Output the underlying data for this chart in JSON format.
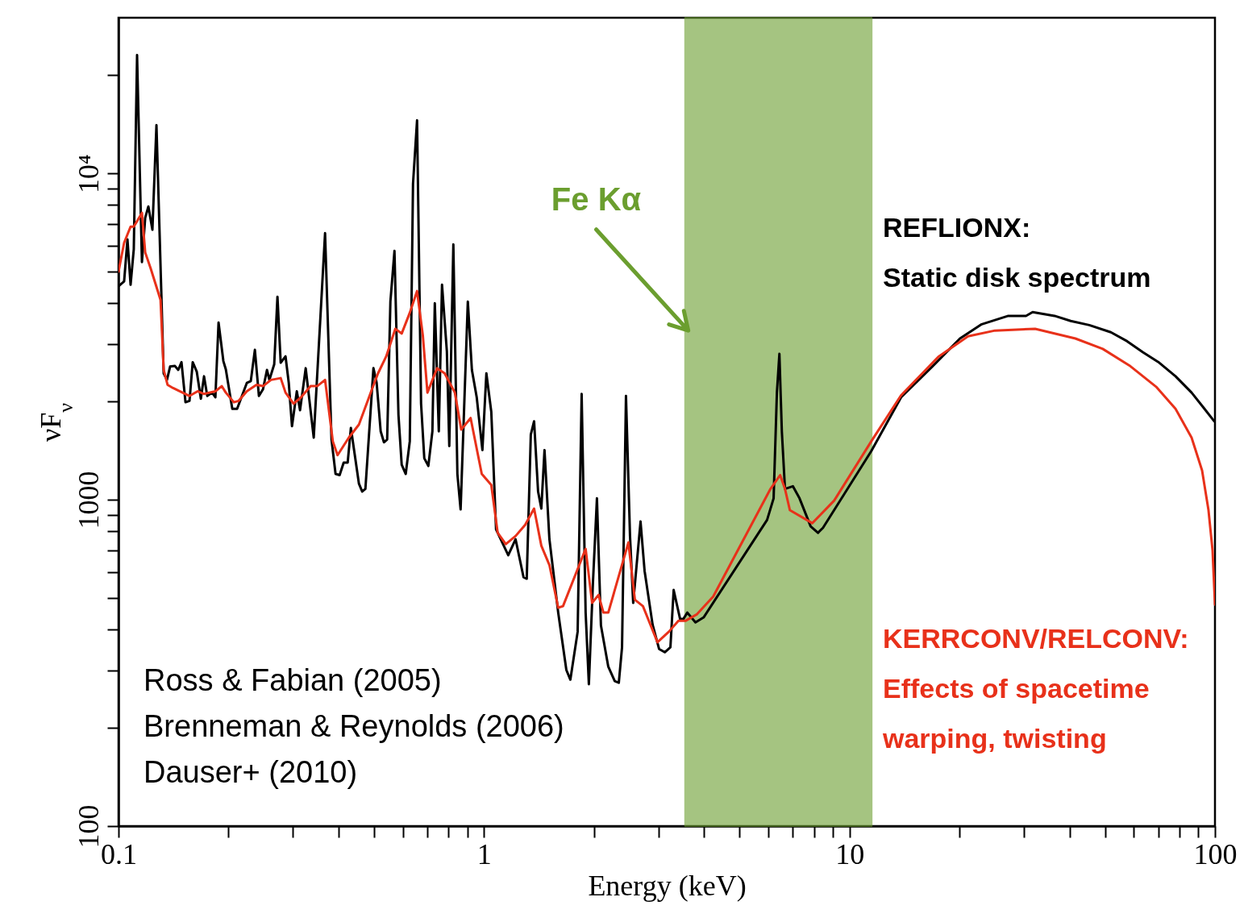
{
  "chart_data": {
    "type": "line",
    "xlabel": "Energy (keV)",
    "ylabel": "νF$_{ν}$",
    "log": "xy",
    "xlim": [
      0.1,
      100
    ],
    "ylim": [
      100,
      30000
    ],
    "xticks": [
      0.1,
      {
        "value": 0.2,
        "label": null
      },
      {
        "value": 0.3,
        "label": null
      },
      {
        "value": 0.4,
        "label": null
      },
      {
        "value": 0.5,
        "label": null
      },
      {
        "value": 0.6,
        "label": null
      },
      {
        "value": 0.7,
        "label": null
      },
      {
        "value": 0.8,
        "label": null
      },
      {
        "value": 0.9,
        "label": null
      },
      1,
      {
        "value": 2,
        "label": null
      },
      {
        "value": 3,
        "label": null
      },
      {
        "value": 4,
        "label": null
      },
      {
        "value": 5,
        "label": null
      },
      {
        "value": 6,
        "label": null
      },
      {
        "value": 7,
        "label": null
      },
      {
        "value": 8,
        "label": null
      },
      {
        "value": 9,
        "label": null
      },
      10,
      {
        "value": 20,
        "label": null
      },
      {
        "value": 30,
        "label": null
      },
      {
        "value": 40,
        "label": null
      },
      {
        "value": 50,
        "label": null
      },
      {
        "value": 60,
        "label": null
      },
      {
        "value": 70,
        "label": null
      },
      {
        "value": 80,
        "label": null
      },
      {
        "value": 90,
        "label": null
      },
      100
    ],
    "yticks": [
      100,
      {
        "value": 200,
        "label": null
      },
      {
        "value": 300,
        "label": null
      },
      {
        "value": 400,
        "label": null
      },
      {
        "value": 500,
        "label": null
      },
      {
        "value": 600,
        "label": null
      },
      {
        "value": 700,
        "label": null
      },
      {
        "value": 800,
        "label": null
      },
      {
        "value": 900,
        "label": null
      },
      1000,
      {
        "value": 2000,
        "label": null
      },
      {
        "value": 3000,
        "label": null
      },
      {
        "value": 4000,
        "label": null
      },
      {
        "value": 5000,
        "label": null
      },
      {
        "value": 6000,
        "label": null
      },
      {
        "value": 7000,
        "label": null
      },
      {
        "value": 8000,
        "label": null
      },
      {
        "value": 9000,
        "label": null
      },
      {
        "value": 10000,
        "label": "10⁴"
      },
      {
        "value": 20000,
        "label": null
      }
    ],
    "grid": false,
    "legend": "right",
    "line_style": "solid",
    "series": [
      {
        "name": "REFLIONX:\nStatic disk spectrum",
        "color": "#000000",
        "x": [
          0.1,
          0.1036,
          0.1058,
          0.1079,
          0.1101,
          0.1124,
          0.1159,
          0.1183,
          0.1207,
          0.1238,
          0.127,
          0.1329,
          0.1357,
          0.1384,
          0.1427,
          0.1457,
          0.1487,
          0.1525,
          0.1564,
          0.1596,
          0.1637,
          0.168,
          0.1714,
          0.1749,
          0.1804,
          0.1841,
          0.1878,
          0.1936,
          0.1966,
          0.2048,
          0.2111,
          0.2244,
          0.2301,
          0.2361,
          0.2422,
          0.2485,
          0.2548,
          0.2587,
          0.2667,
          0.2722,
          0.2778,
          0.2864,
          0.2923,
          0.2983,
          0.3075,
          0.3138,
          0.3252,
          0.3421,
          0.3674,
          0.3826,
          0.3925,
          0.4027,
          0.4131,
          0.4237,
          0.4323,
          0.4548,
          0.4642,
          0.4737,
          0.4983,
          0.5085,
          0.5216,
          0.5324,
          0.5433,
          0.5545,
          0.5689,
          0.5834,
          0.5954,
          0.6107,
          0.6265,
          0.6394,
          0.6559,
          0.6727,
          0.6865,
          0.7042,
          0.7224,
          0.7335,
          0.7522,
          0.7676,
          0.7914,
          0.8035,
          0.8244,
          0.8456,
          0.863,
          0.9031,
          0.9266,
          0.9552,
          0.99,
          1.015,
          1.047,
          1.079,
          1.165,
          1.22,
          1.283,
          1.309,
          1.343,
          1.371,
          1.406,
          1.435,
          1.464,
          1.51,
          1.596,
          1.68,
          1.723,
          1.804,
          1.85,
          1.897,
          1.936,
          1.986,
          2.037,
          2.089,
          2.188,
          2.279,
          2.338,
          2.386,
          2.446,
          2.509,
          2.56,
          2.681,
          2.75,
          2.893,
          3.013,
          3.123,
          3.236,
          3.303,
          3.44,
          3.51,
          3.6,
          3.79,
          3.99,
          5.95,
          6.2,
          6.33,
          6.43,
          6.53,
          6.66,
          7.0,
          7.3,
          7.83,
          8.2,
          8.46,
          11.47,
          13.84,
          16.97,
          20.06,
          23.0,
          27.2,
          30.4,
          31.7,
          36.4,
          40.3,
          45.3,
          51.9,
          57.5,
          63.6,
          70.4,
          78.0,
          86.3,
          93.6,
          99.5
        ],
        "values": [
          4510,
          4670,
          6280,
          4560,
          5860,
          23070,
          5350,
          7310,
          7920,
          6720,
          14060,
          2440,
          2330,
          2560,
          2570,
          2500,
          2640,
          1990,
          2010,
          2640,
          2470,
          2040,
          2390,
          2080,
          2130,
          2060,
          3490,
          2660,
          2510,
          1900,
          1900,
          2280,
          2310,
          2880,
          2080,
          2180,
          2500,
          2330,
          2600,
          4190,
          2630,
          2750,
          2280,
          1680,
          2150,
          1880,
          2530,
          1550,
          6560,
          1530,
          1200,
          1190,
          1300,
          1300,
          1660,
          1120,
          1060,
          1080,
          2530,
          2280,
          1620,
          1500,
          1530,
          4050,
          5790,
          1820,
          1280,
          1200,
          1510,
          9290,
          14550,
          1970,
          1340,
          1270,
          1620,
          4000,
          1620,
          4560,
          2850,
          1460,
          6060,
          1200,
          934,
          4050,
          2500,
          2060,
          1420,
          2440,
          1860,
          811,
          676,
          757,
          579,
          573,
          1585,
          1740,
          1060,
          940,
          1420,
          757,
          451,
          301,
          281,
          394,
          2110,
          451,
          272,
          554,
          1010,
          412,
          308,
          278,
          275,
          353,
          2080,
          774,
          483,
          858,
          606,
          414,
          349,
          341,
          353,
          529,
          431,
          431,
          451,
          421,
          436,
          867,
          1010,
          2130,
          2800,
          1620,
          1080,
          1100,
          1010,
          829,
          792,
          820,
          1410,
          2060,
          2580,
          3120,
          3450,
          3660,
          3660,
          3760,
          3660,
          3530,
          3430,
          3260,
          3060,
          2830,
          2630,
          2390,
          2130,
          1900,
          1740
        ]
      },
      {
        "name": "KERRCONV/RELCONV:\nEffects of spacetime\nwarping, twisting",
        "color": "#e8311a",
        "x": [
          0.1,
          0.1036,
          0.1079,
          0.1101,
          0.1159,
          0.1183,
          0.1225,
          0.1303,
          0.1329,
          0.1362,
          0.141,
          0.1564,
          0.1646,
          0.1714,
          0.1841,
          0.1916,
          0.1966,
          0.2068,
          0.2132,
          0.2244,
          0.2384,
          0.2485,
          0.2613,
          0.2778,
          0.2864,
          0.3013,
          0.3157,
          0.3355,
          0.3496,
          0.3674,
          0.3858,
          0.3975,
          0.4267,
          0.4548,
          0.4937,
          0.5129,
          0.5401,
          0.5719,
          0.5954,
          0.6265,
          0.6559,
          0.6802,
          0.7002,
          0.7442,
          0.7806,
          0.8323,
          0.8662,
          0.9192,
          0.9859,
          1.047,
          1.09,
          1.147,
          1.22,
          1.296,
          1.371,
          1.435,
          1.51,
          1.596,
          1.645,
          1.897,
          1.976,
          2.058,
          2.122,
          2.188,
          2.484,
          2.587,
          2.722,
          2.983,
          3.203,
          3.404,
          3.564,
          3.827,
          4.237,
          6.08,
          6.46,
          6.66,
          6.87,
          7.91,
          9.08,
          11.47,
          13.84,
          17.5,
          21.1,
          25.0,
          32.2,
          41.5,
          49.3,
          58.3,
          69.0,
          78.0,
          86.3,
          92.2,
          96.0,
          98.5,
          100
        ],
        "values": [
          5000,
          6130,
          6870,
          6870,
          7570,
          5730,
          5110,
          4100,
          2500,
          2250,
          2200,
          2080,
          2150,
          2110,
          2150,
          2230,
          2130,
          1990,
          2010,
          2150,
          2250,
          2230,
          2330,
          2360,
          2130,
          1970,
          2060,
          2230,
          2230,
          2330,
          1510,
          1370,
          1550,
          1700,
          2180,
          2440,
          2750,
          3340,
          3230,
          3740,
          4360,
          3190,
          2130,
          2530,
          2440,
          2130,
          1640,
          1780,
          1200,
          1110,
          792,
          731,
          774,
          838,
          940,
          723,
          631,
          467,
          472,
          707,
          483,
          511,
          451,
          451,
          740,
          494,
          472,
          366,
          394,
          426,
          426,
          446,
          505,
          1080,
          1190,
          1080,
          929,
          848,
          994,
          1510,
          2090,
          2740,
          3170,
          3300,
          3340,
          3120,
          2900,
          2580,
          2220,
          1900,
          1550,
          1230,
          929,
          698,
          477
        ]
      }
    ],
    "bands": [
      {
        "axis": "x",
        "from": 3.55,
        "to": 11.5,
        "label": "Fe Kα",
        "color": "#6b9e2f"
      }
    ],
    "annotations": [
      "Ross & Fabian (2005)\nBrenneman & Reynolds (2006)\nDauser+ (2010)"
    ]
  }
}
